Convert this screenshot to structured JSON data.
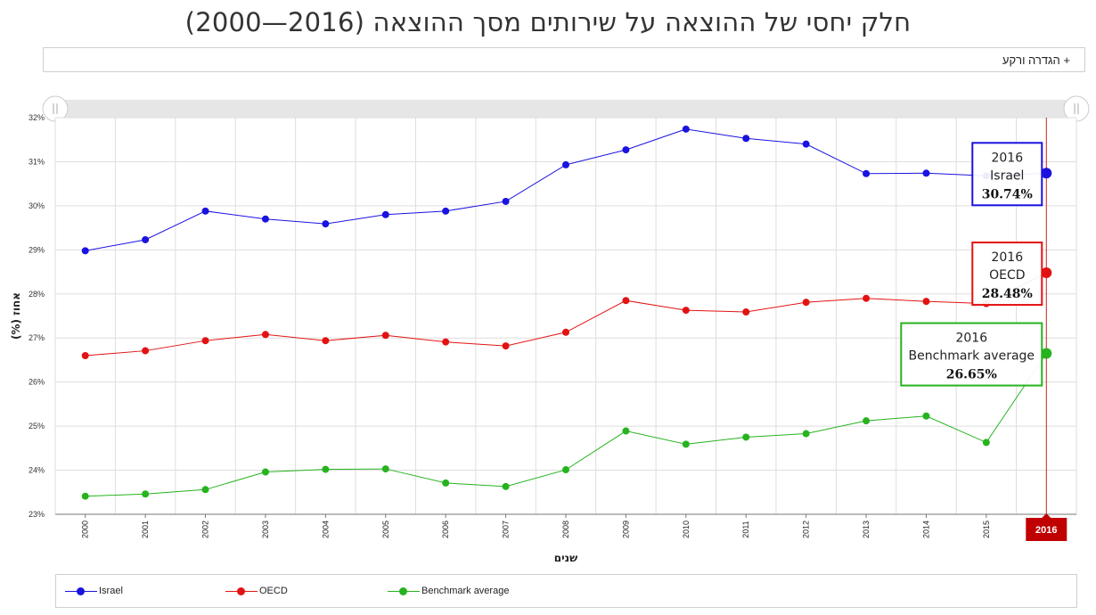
{
  "title": "חלק יחסי של ההוצאה על שירותים מסך ההוצאה (2016—2000)",
  "definition_toggle": "+ הגדרה ורקע",
  "chart_data": {
    "type": "line",
    "title": "חלק יחסי של ההוצאה על שירותים מסך ההוצאה (2016—2000)",
    "xlabel": "שנים",
    "ylabel": "אחוז (%)",
    "categories": [
      "2000",
      "2001",
      "2002",
      "2003",
      "2004",
      "2005",
      "2006",
      "2007",
      "2008",
      "2009",
      "2010",
      "2011",
      "2012",
      "2013",
      "2014",
      "2015",
      "2016"
    ],
    "ylim": [
      23,
      32
    ],
    "yticks": [
      "23%",
      "24%",
      "25%",
      "26%",
      "27%",
      "28%",
      "29%",
      "30%",
      "31%",
      "32%"
    ],
    "grid": true,
    "legend_position": "bottom",
    "highlight_category": "2016",
    "series": [
      {
        "name": "Israel",
        "color": "#1a12e0",
        "values": [
          28.98,
          29.23,
          29.88,
          29.7,
          29.59,
          29.8,
          29.88,
          30.1,
          30.93,
          31.27,
          31.74,
          31.53,
          31.4,
          30.73,
          30.74,
          30.68,
          30.74
        ]
      },
      {
        "name": "OECD",
        "color": "#e31212",
        "values": [
          26.6,
          26.71,
          26.94,
          27.08,
          26.94,
          27.06,
          26.91,
          26.82,
          27.13,
          27.85,
          27.63,
          27.59,
          27.81,
          27.9,
          27.83,
          27.78,
          28.48
        ]
      },
      {
        "name": "Benchmark average",
        "color": "#26b31e",
        "values": [
          23.41,
          23.46,
          23.56,
          23.96,
          24.02,
          24.03,
          23.71,
          23.63,
          24.01,
          24.89,
          24.59,
          24.75,
          24.83,
          25.12,
          25.23,
          24.63,
          26.65
        ]
      }
    ],
    "tooltips": [
      {
        "year": "2016",
        "series": "Israel",
        "value": "30.74%",
        "color": "#1a12e0"
      },
      {
        "year": "2016",
        "series": "OECD",
        "value": "28.48%",
        "color": "#e31212"
      },
      {
        "year": "2016",
        "series": "Benchmark average",
        "value": "26.65%",
        "color": "#26b31e"
      }
    ]
  }
}
